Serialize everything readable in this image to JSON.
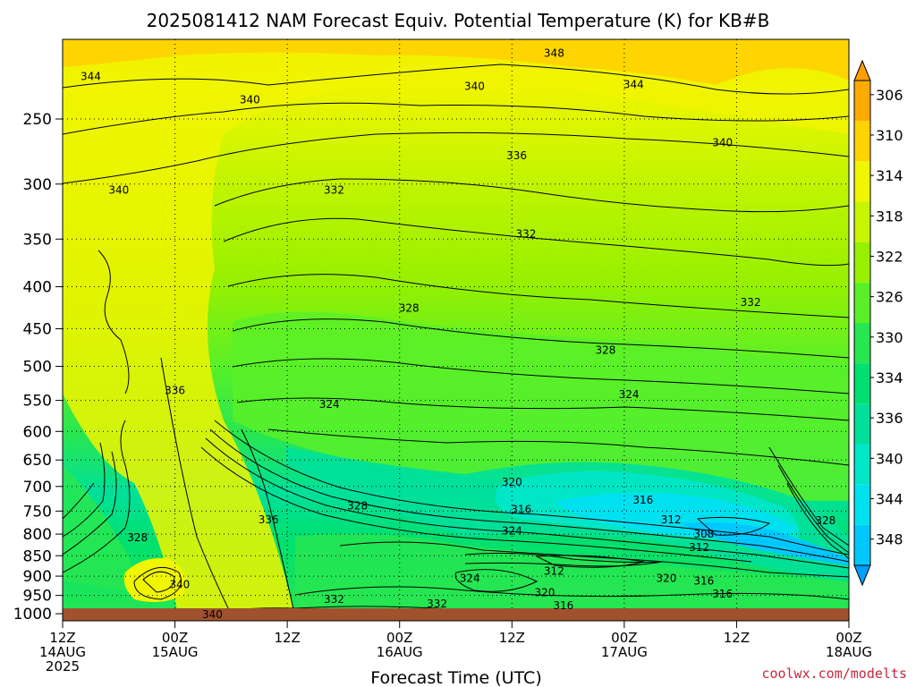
{
  "chart_data": {
    "type": "heatmap",
    "title": "2025081412 NAM Forecast Equiv. Potential Temperature (K) for KB#B",
    "xlabel": "Forecast Time (UTC)",
    "ylabel": "",
    "x_ticks": [
      {
        "line1": "12Z",
        "line2": "14AUG",
        "line3": "2025",
        "hour": 0
      },
      {
        "line1": "00Z",
        "line2": "15AUG",
        "line3": "",
        "hour": 12
      },
      {
        "line1": "12Z",
        "line2": "",
        "line3": "",
        "hour": 24
      },
      {
        "line1": "00Z",
        "line2": "16AUG",
        "line3": "",
        "hour": 36
      },
      {
        "line1": "12Z",
        "line2": "",
        "line3": "",
        "hour": 48
      },
      {
        "line1": "00Z",
        "line2": "17AUG",
        "line3": "",
        "hour": 60
      },
      {
        "line1": "12Z",
        "line2": "",
        "line3": "",
        "hour": 72
      },
      {
        "line1": "00Z",
        "line2": "18AUG",
        "line3": "",
        "hour": 84
      }
    ],
    "x_range": [
      0,
      84
    ],
    "y_ticks": [
      250,
      300,
      350,
      400,
      450,
      500,
      550,
      600,
      650,
      700,
      750,
      800,
      850,
      900,
      950,
      1000
    ],
    "y_range_hPa": [
      200,
      1020
    ],
    "y_scale": "log",
    "grid": true,
    "colorbar": {
      "levels": [
        306,
        310,
        314,
        318,
        322,
        326,
        330,
        334,
        336,
        340,
        344,
        348
      ],
      "colors": [
        "#00c8ff",
        "#00e1f0",
        "#00e6c8",
        "#00e09a",
        "#00e070",
        "#28e650",
        "#5af028",
        "#96f000",
        "#c8f500",
        "#f0f500",
        "#ffd200",
        "#ffaa00"
      ],
      "under_color": "#00a0ff",
      "over_color": "#ffa000"
    },
    "contour_labels": [
      {
        "text": "348",
        "hour": 52.5,
        "p": 208
      },
      {
        "text": "344",
        "hour": 3,
        "p": 222
      },
      {
        "text": "344",
        "hour": 61,
        "p": 227
      },
      {
        "text": "340",
        "hour": 20,
        "p": 237
      },
      {
        "text": "340",
        "hour": 44,
        "p": 228
      },
      {
        "text": "340",
        "hour": 70.5,
        "p": 267
      },
      {
        "text": "336",
        "hour": 48.5,
        "p": 277
      },
      {
        "text": "340",
        "hour": 6,
        "p": 305
      },
      {
        "text": "332",
        "hour": 29,
        "p": 305
      },
      {
        "text": "332",
        "hour": 49.5,
        "p": 345
      },
      {
        "text": "332",
        "hour": 73.5,
        "p": 418
      },
      {
        "text": "328",
        "hour": 37,
        "p": 425
      },
      {
        "text": "328",
        "hour": 58,
        "p": 478
      },
      {
        "text": "336",
        "hour": 12,
        "p": 535
      },
      {
        "text": "324",
        "hour": 28.5,
        "p": 556
      },
      {
        "text": "324",
        "hour": 60.5,
        "p": 541
      },
      {
        "text": "320",
        "hour": 48,
        "p": 692
      },
      {
        "text": "328",
        "hour": 31.5,
        "p": 739
      },
      {
        "text": "316",
        "hour": 49,
        "p": 747
      },
      {
        "text": "316",
        "hour": 62,
        "p": 727
      },
      {
        "text": "312",
        "hour": 65,
        "p": 768
      },
      {
        "text": "336",
        "hour": 22,
        "p": 768
      },
      {
        "text": "324",
        "hour": 48,
        "p": 793
      },
      {
        "text": "308",
        "hour": 68.5,
        "p": 800
      },
      {
        "text": "328",
        "hour": 8,
        "p": 808
      },
      {
        "text": "312",
        "hour": 68,
        "p": 831
      },
      {
        "text": "328",
        "hour": 81.5,
        "p": 770
      },
      {
        "text": "312",
        "hour": 52.5,
        "p": 888
      },
      {
        "text": "324",
        "hour": 43.5,
        "p": 906
      },
      {
        "text": "320",
        "hour": 64.5,
        "p": 906
      },
      {
        "text": "316",
        "hour": 68.5,
        "p": 912
      },
      {
        "text": "340",
        "hour": 12.5,
        "p": 922
      },
      {
        "text": "320",
        "hour": 51.5,
        "p": 942
      },
      {
        "text": "316",
        "hour": 70.5,
        "p": 946
      },
      {
        "text": "332",
        "hour": 29,
        "p": 960
      },
      {
        "text": "332",
        "hour": 40,
        "p": 972
      },
      {
        "text": "316",
        "hour": 53.5,
        "p": 978
      },
      {
        "text": "340",
        "hour": 16,
        "p": 1002
      }
    ]
  },
  "credit": "coolwx.com/modelts"
}
